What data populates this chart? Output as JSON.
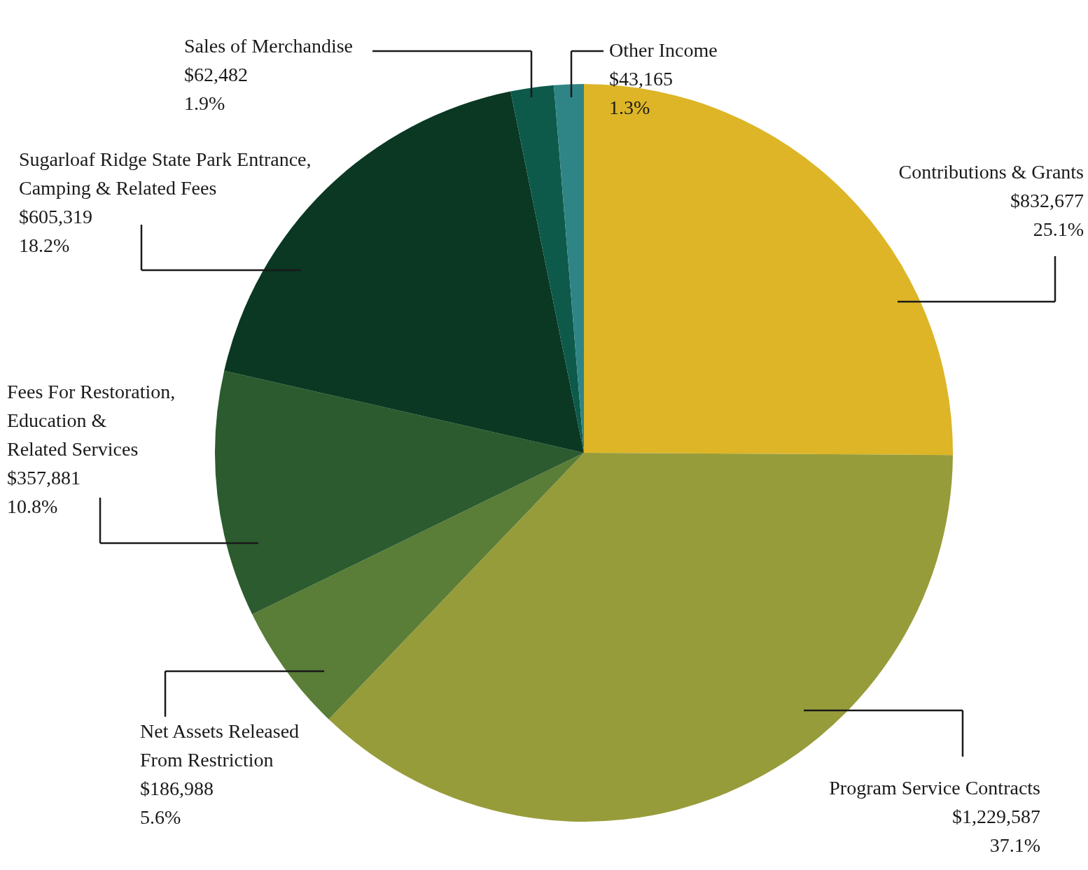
{
  "chart_data": {
    "type": "pie",
    "categories": [
      "Contributions & Grants",
      "Program Service Contracts",
      "Net Assets Released From Restriction",
      "Fees For Restoration, Education & Related Services",
      "Sugarloaf Ridge State Park Entrance, Camping & Related Fees",
      "Sales of Merchandise",
      "Other Income"
    ],
    "values": [
      832677,
      1229587,
      186988,
      357881,
      605319,
      62482,
      43165
    ],
    "colors": [
      "#ddb527",
      "#979c3a",
      "#5a7d37",
      "#2b5b2e",
      "#0a3822",
      "#0d5a4a",
      "#2f8585"
    ],
    "value_labels": [
      "$832,677\n25.1%",
      "$1,229,587\n37.1%",
      "$186,988\n5.6%",
      "$357,881\n10.8%",
      "$605,319\n18.2%",
      "$62,482\n1.9%",
      "$43,165\n1.3%"
    ]
  }
}
